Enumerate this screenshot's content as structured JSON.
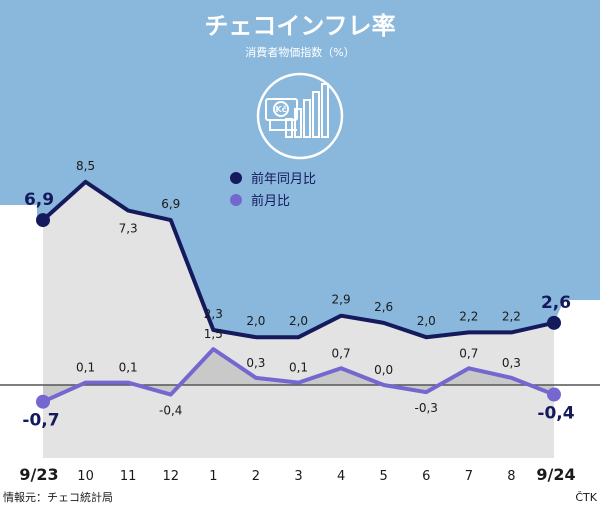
{
  "title": "チェコインフレ率",
  "subtitle": "消費者物価指数（%）",
  "source": "情報元：チェコ統計局",
  "agency": "ČTK",
  "icon": "money-chart-icon",
  "colors": {
    "background_blue": "#8ab8dc",
    "yoy_line": "#141a5c",
    "mom_line": "#7468d0",
    "area_fill": "#e3e3e3",
    "white": "#ffffff",
    "text": "#1a1a1a"
  },
  "chart_data": {
    "type": "line",
    "categories": [
      "9/23",
      "10",
      "11",
      "12",
      "1",
      "2",
      "3",
      "4",
      "5",
      "6",
      "7",
      "8",
      "9/24"
    ],
    "series": [
      {
        "name": "前年同月比",
        "values": [
          6.9,
          8.5,
          7.3,
          6.9,
          2.3,
          2.0,
          2.0,
          2.9,
          2.6,
          2.0,
          2.2,
          2.2,
          2.6
        ],
        "labels": [
          "6,9",
          "8,5",
          "7,3",
          "6,9",
          "2,3",
          "2,0",
          "2,0",
          "2,9",
          "2,6",
          "2,0",
          "2,2",
          "2,2",
          "2,6"
        ]
      },
      {
        "name": "前月比",
        "values": [
          -0.7,
          0.1,
          0.1,
          -0.4,
          1.5,
          0.3,
          0.1,
          0.7,
          0.0,
          -0.3,
          0.7,
          0.3,
          -0.4
        ],
        "labels": [
          "-0,7",
          "0,1",
          "0,1",
          "-0,4",
          "1,5",
          "0,3",
          "0,1",
          "0,7",
          "0,0",
          "-0,3",
          "0,7",
          "0,3",
          "-0,4"
        ]
      }
    ],
    "legend": [
      "前年同月比",
      "前月比"
    ],
    "legend_position": "top-center",
    "ylim": [
      -1.2,
      10
    ],
    "zero_line": true,
    "grid": false
  }
}
